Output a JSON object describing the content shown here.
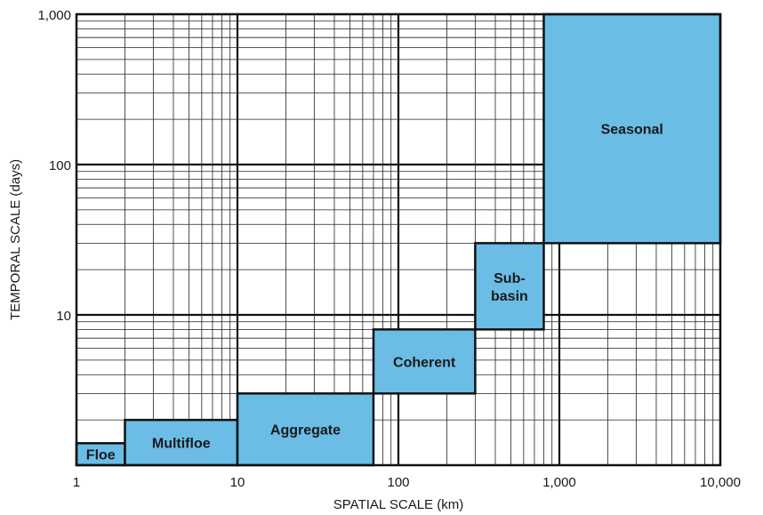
{
  "chart_data": {
    "type": "table",
    "title": "",
    "xlabel": "SPATIAL SCALE (km)",
    "ylabel": "TEMPORAL SCALE (days)",
    "x_scale": "log",
    "y_scale": "log",
    "xlim": [
      1,
      10000
    ],
    "ylim": [
      1,
      1000
    ],
    "grid": true,
    "x_ticks": [
      {
        "value": 1,
        "label": "1"
      },
      {
        "value": 10,
        "label": "10"
      },
      {
        "value": 100,
        "label": "100"
      },
      {
        "value": 1000,
        "label": "1,000"
      },
      {
        "value": 10000,
        "label": "10,000"
      }
    ],
    "y_ticks": [
      {
        "value": 10,
        "label": "10"
      },
      {
        "value": 100,
        "label": "100"
      },
      {
        "value": 1000,
        "label": "1,000"
      }
    ],
    "fill_color": "#6bbde6",
    "boxes": [
      {
        "lines": [
          "Floe"
        ],
        "x_range": [
          1,
          2
        ],
        "y_range": [
          1,
          1.4
        ]
      },
      {
        "lines": [
          "Multifloe"
        ],
        "x_range": [
          2,
          10
        ],
        "y_range": [
          1,
          2
        ]
      },
      {
        "lines": [
          "Aggregate"
        ],
        "x_range": [
          10,
          70
        ],
        "y_range": [
          1,
          3
        ]
      },
      {
        "lines": [
          "Coherent"
        ],
        "x_range": [
          70,
          300
        ],
        "y_range": [
          3,
          8
        ]
      },
      {
        "lines": [
          "Sub-",
          "basin"
        ],
        "x_range": [
          300,
          800
        ],
        "y_range": [
          8,
          30
        ]
      },
      {
        "lines": [
          "Seasonal"
        ],
        "x_range": [
          800,
          10000
        ],
        "y_range": [
          30,
          1000
        ]
      }
    ]
  }
}
